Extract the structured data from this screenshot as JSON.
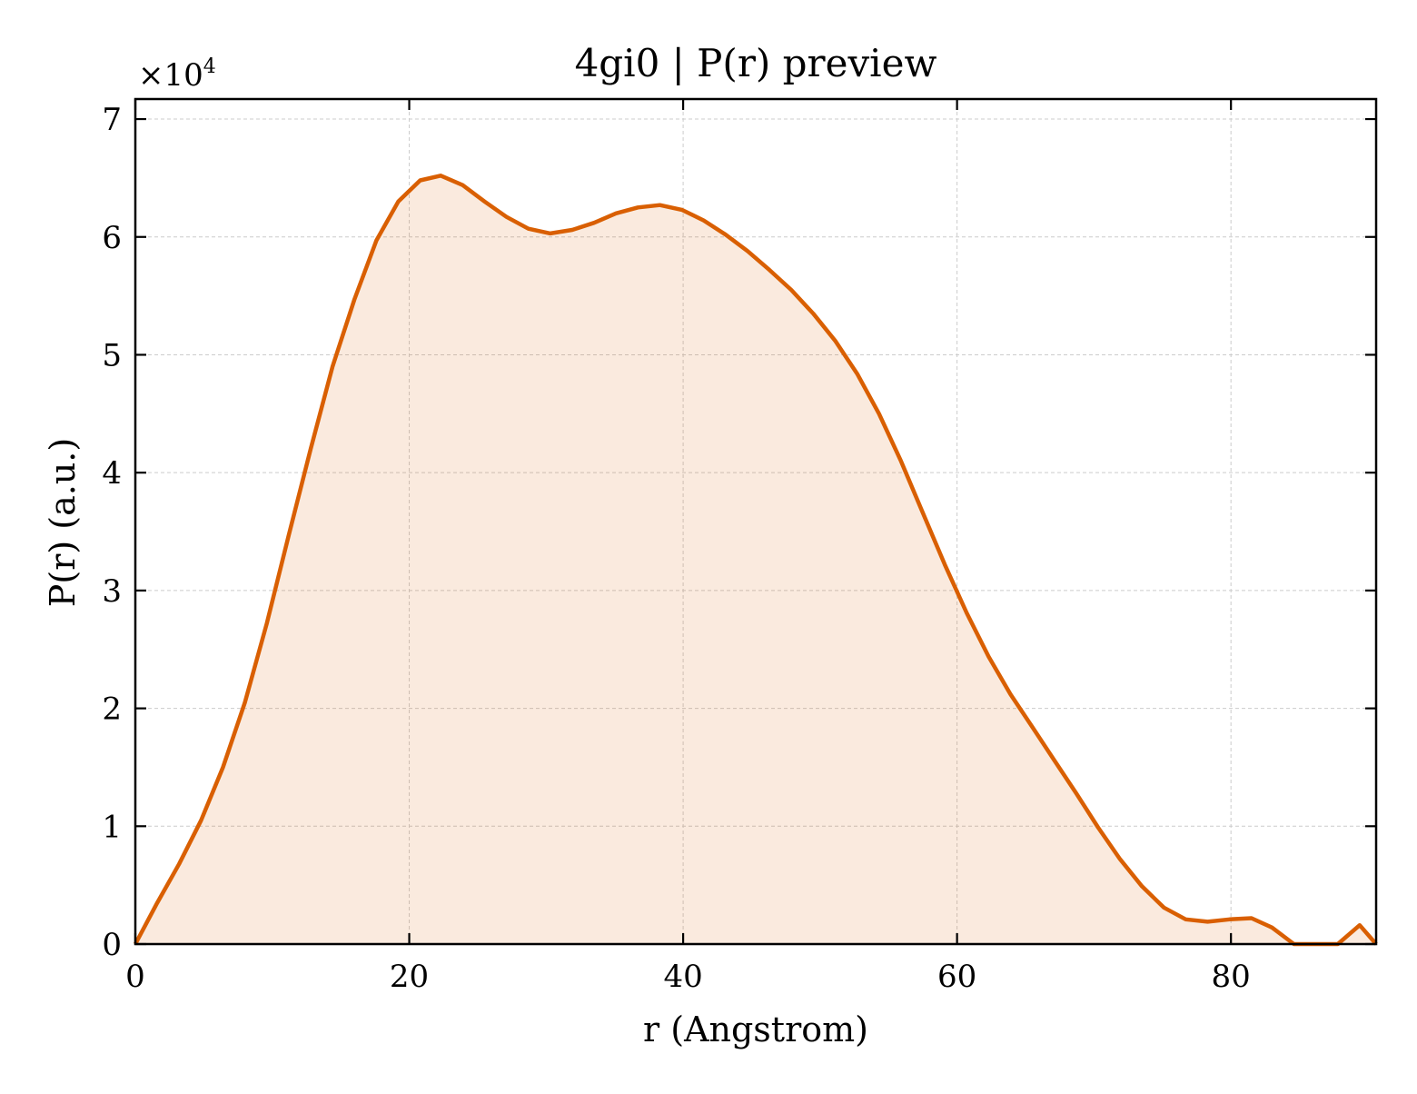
{
  "chart_data": {
    "type": "area",
    "title": "4gi0 | P(r) preview",
    "xlabel": "r (Angstrom)",
    "ylabel": "P(r) (a.u.)",
    "y_scale_label_prefix": "×10",
    "y_scale_label_exponent": "4",
    "xlim": [
      0,
      90.6
    ],
    "ylim": [
      0,
      7.17
    ],
    "y_multiplier": 10000,
    "x_ticks": [
      0,
      20,
      40,
      60,
      80
    ],
    "x_tick_labels": [
      "0",
      "20",
      "40",
      "60",
      "80"
    ],
    "y_ticks": [
      0,
      1,
      2,
      3,
      4,
      5,
      6,
      7
    ],
    "y_tick_labels": [
      "0",
      "1",
      "2",
      "3",
      "4",
      "5",
      "6",
      "7"
    ],
    "grid": true,
    "colors": {
      "line": "#d95f02",
      "fill": "#d95f02",
      "fill_opacity": 0.13,
      "grid": "#cccccc"
    },
    "series": [
      {
        "x": [
          0,
          1.6,
          3.2,
          4.8,
          6.4,
          8.0,
          9.6,
          11.2,
          12.8,
          14.4,
          16.0,
          17.6,
          19.2,
          20.8,
          22.3,
          23.9,
          25.5,
          27.1,
          28.7,
          30.3,
          31.9,
          33.5,
          35.1,
          36.7,
          38.3,
          39.9,
          41.5,
          43.1,
          44.7,
          46.3,
          47.9,
          49.5,
          51.1,
          52.7,
          54.3,
          55.9,
          57.5,
          59.1,
          60.7,
          62.3,
          63.9,
          65.5,
          67.1,
          68.7,
          70.3,
          71.9,
          73.5,
          75.1,
          76.7,
          78.3,
          79.9,
          81.5,
          83.0,
          84.6,
          86.2,
          87.8,
          89.4,
          90.6
        ],
        "y": [
          0.0,
          0.35,
          0.68,
          1.05,
          1.5,
          2.05,
          2.72,
          3.47,
          4.2,
          4.9,
          5.47,
          5.97,
          6.3,
          6.48,
          6.52,
          6.44,
          6.3,
          6.17,
          6.07,
          6.03,
          6.06,
          6.12,
          6.2,
          6.25,
          6.27,
          6.23,
          6.14,
          6.02,
          5.88,
          5.72,
          5.55,
          5.35,
          5.12,
          4.84,
          4.5,
          4.1,
          3.66,
          3.22,
          2.81,
          2.44,
          2.12,
          1.84,
          1.56,
          1.28,
          0.99,
          0.72,
          0.49,
          0.31,
          0.21,
          0.19,
          0.21,
          0.22,
          0.14,
          0.0,
          0.0,
          0.0,
          0.16,
          0.0
        ]
      }
    ]
  }
}
